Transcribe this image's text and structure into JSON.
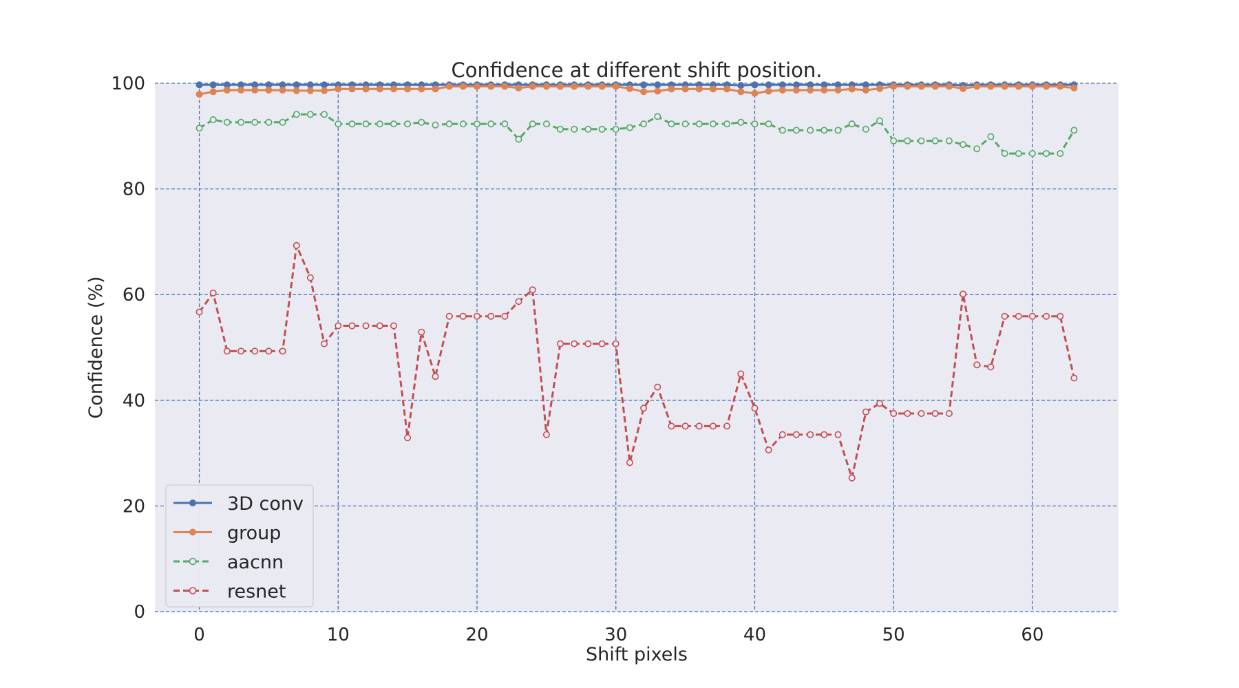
{
  "chart_data": {
    "type": "line",
    "title": "Confidence at different shift position.",
    "xlabel": "Shift pixels",
    "ylabel": "Confidence (%)",
    "xlim": [
      -3.2,
      66.2
    ],
    "ylim": [
      0,
      100
    ],
    "xticks": [
      0,
      10,
      20,
      30,
      40,
      50,
      60
    ],
    "yticks": [
      0,
      20,
      40,
      60,
      80,
      100
    ],
    "grid": true,
    "legend_position": "lower-left",
    "x": [
      0,
      1,
      2,
      3,
      4,
      5,
      6,
      7,
      8,
      9,
      10,
      11,
      12,
      13,
      14,
      15,
      16,
      17,
      18,
      19,
      20,
      21,
      22,
      23,
      24,
      25,
      26,
      27,
      28,
      29,
      30,
      31,
      32,
      33,
      34,
      35,
      36,
      37,
      38,
      39,
      40,
      41,
      42,
      43,
      44,
      45,
      46,
      47,
      48,
      49,
      50,
      51,
      52,
      53,
      54,
      55,
      56,
      57,
      58,
      59,
      60,
      61,
      62,
      63
    ],
    "series": [
      {
        "name": "3D conv",
        "color": "#4c72b0",
        "style": "solid",
        "marker": "filled",
        "values": [
          99.7,
          99.7,
          99.7,
          99.7,
          99.7,
          99.7,
          99.7,
          99.7,
          99.7,
          99.7,
          99.7,
          99.7,
          99.7,
          99.7,
          99.7,
          99.7,
          99.7,
          99.7,
          99.7,
          99.7,
          99.7,
          99.7,
          99.7,
          99.7,
          99.7,
          99.7,
          99.7,
          99.7,
          99.7,
          99.7,
          99.7,
          99.7,
          99.7,
          99.7,
          99.7,
          99.7,
          99.7,
          99.7,
          99.7,
          99.6,
          99.7,
          99.7,
          99.7,
          99.7,
          99.7,
          99.7,
          99.7,
          99.7,
          99.7,
          99.7,
          99.7,
          99.7,
          99.7,
          99.7,
          99.7,
          99.6,
          99.7,
          99.7,
          99.7,
          99.7,
          99.7,
          99.7,
          99.7,
          99.7
        ]
      },
      {
        "name": "group",
        "color": "#dd8452",
        "style": "solid",
        "marker": "filled",
        "values": [
          97.9,
          98.4,
          98.7,
          98.7,
          98.7,
          98.7,
          98.7,
          98.6,
          98.6,
          98.6,
          98.9,
          98.9,
          98.9,
          98.9,
          98.9,
          98.9,
          98.9,
          98.9,
          99.4,
          99.4,
          99.4,
          99.4,
          99.4,
          99.1,
          99.4,
          99.4,
          99.4,
          99.4,
          99.4,
          99.4,
          99.4,
          99.0,
          98.4,
          98.5,
          98.9,
          98.9,
          98.9,
          98.9,
          98.9,
          98.4,
          98.1,
          98.5,
          98.7,
          98.7,
          98.7,
          98.7,
          98.7,
          98.9,
          98.7,
          99.0,
          99.4,
          99.4,
          99.4,
          99.4,
          99.4,
          99.0,
          99.4,
          99.4,
          99.4,
          99.4,
          99.4,
          99.4,
          99.4,
          99.1
        ]
      },
      {
        "name": "aacnn",
        "color": "#55a868",
        "style": "dashed",
        "marker": "hollow",
        "values": [
          91.5,
          93.1,
          92.6,
          92.6,
          92.6,
          92.6,
          92.6,
          94.1,
          94.1,
          94.1,
          92.3,
          92.3,
          92.3,
          92.3,
          92.3,
          92.3,
          92.6,
          92.1,
          92.3,
          92.3,
          92.3,
          92.3,
          92.3,
          89.4,
          92.3,
          92.3,
          91.3,
          91.3,
          91.3,
          91.3,
          91.3,
          91.6,
          92.3,
          93.7,
          92.3,
          92.3,
          92.3,
          92.3,
          92.3,
          92.6,
          92.3,
          92.3,
          91.1,
          91.1,
          91.1,
          91.1,
          91.1,
          92.3,
          91.3,
          92.9,
          89.1,
          89.1,
          89.1,
          89.1,
          89.1,
          88.4,
          87.6,
          89.9,
          86.7,
          86.7,
          86.7,
          86.7,
          86.7,
          91.1
        ]
      },
      {
        "name": "resnet",
        "color": "#c44e52",
        "style": "dashed",
        "marker": "hollow",
        "values": [
          56.7,
          60.3,
          49.3,
          49.3,
          49.3,
          49.3,
          49.3,
          69.3,
          63.2,
          50.7,
          54.1,
          54.1,
          54.1,
          54.1,
          54.1,
          32.9,
          52.9,
          44.5,
          55.9,
          55.9,
          55.9,
          55.9,
          55.9,
          58.7,
          60.9,
          33.5,
          50.7,
          50.7,
          50.7,
          50.7,
          50.7,
          28.2,
          38.5,
          42.5,
          35.1,
          35.1,
          35.1,
          35.1,
          35.1,
          45.0,
          38.5,
          30.6,
          33.5,
          33.5,
          33.5,
          33.5,
          33.5,
          25.3,
          37.8,
          39.4,
          37.5,
          37.5,
          37.5,
          37.5,
          37.5,
          60.1,
          46.7,
          46.3,
          55.9,
          55.9,
          55.9,
          55.9,
          55.9,
          44.2
        ]
      }
    ]
  }
}
